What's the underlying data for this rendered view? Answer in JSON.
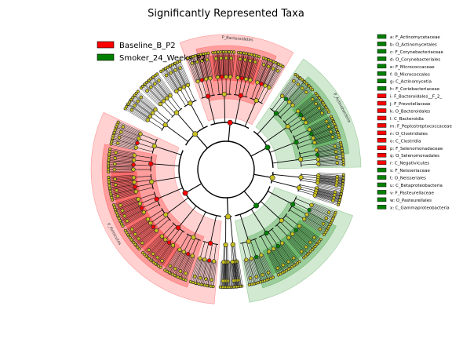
{
  "chart_data": {
    "type": "cladogram",
    "title": "Significantly Represented Taxa",
    "groups": [
      {
        "name": "Baseline_B_P2",
        "color": "#ff0000"
      },
      {
        "name": "Smoker_24_Weeks_P2",
        "color": "#008000"
      }
    ],
    "taxa": [
      {
        "key": "a",
        "label": "a: F_Actinomycetaceae",
        "group": "Smoker_24_Weeks_P2"
      },
      {
        "key": "b",
        "label": "b: O_Actinomycetales",
        "group": "Smoker_24_Weeks_P2"
      },
      {
        "key": "c",
        "label": "c: F_Corynebacteriaceae",
        "group": "Smoker_24_Weeks_P2"
      },
      {
        "key": "d",
        "label": "d: O_Corynebacteriales",
        "group": "Smoker_24_Weeks_P2"
      },
      {
        "key": "e",
        "label": "e: F_Micrococcaceae",
        "group": "Smoker_24_Weeks_P2"
      },
      {
        "key": "f",
        "label": "f: O_Micrococcales",
        "group": "Smoker_24_Weeks_P2"
      },
      {
        "key": "g",
        "label": "g: C_Actinomycetia",
        "group": "Smoker_24_Weeks_P2"
      },
      {
        "key": "h",
        "label": "h: F_Coriobacteriaceae",
        "group": "Smoker_24_Weeks_P2"
      },
      {
        "key": "i",
        "label": "i: F_Bacteroidales__F_2_",
        "group": "Baseline_B_P2"
      },
      {
        "key": "j",
        "label": "j: F_Prevotellaceae",
        "group": "Baseline_B_P2"
      },
      {
        "key": "k",
        "label": "k: O_Bacteroidales",
        "group": "Baseline_B_P2"
      },
      {
        "key": "l",
        "label": "l: C_Bacteroidia",
        "group": "Baseline_B_P2"
      },
      {
        "key": "m",
        "label": "m: F_Peptostreptococcaceae",
        "group": "Baseline_B_P2"
      },
      {
        "key": "n",
        "label": "n: O_Clostridiales",
        "group": "Baseline_B_P2"
      },
      {
        "key": "o",
        "label": "o: C_Clostridia",
        "group": "Baseline_B_P2"
      },
      {
        "key": "p",
        "label": "p: F_Selenomonadaceae",
        "group": "Baseline_B_P2"
      },
      {
        "key": "q",
        "label": "q: O_Selenomonadales",
        "group": "Baseline_B_P2"
      },
      {
        "key": "r",
        "label": "r: C_Negativicutes",
        "group": "Baseline_B_P2"
      },
      {
        "key": "s",
        "label": "s: F_Neisseriaceae",
        "group": "Smoker_24_Weeks_P2"
      },
      {
        "key": "t",
        "label": "t: O_Neisseriales",
        "group": "Smoker_24_Weeks_P2"
      },
      {
        "key": "u",
        "label": "u: C_Betaproteobacteria",
        "group": "Smoker_24_Weeks_P2"
      },
      {
        "key": "v",
        "label": "v: F_Pasteurellaceae",
        "group": "Smoker_24_Weeks_P2"
      },
      {
        "key": "w",
        "label": "w: O_Pasteurellales",
        "group": "Smoker_24_Weeks_P2"
      },
      {
        "key": "x",
        "label": "x: C_Gammaproteobacteria",
        "group": "Smoker_24_Weeks_P2"
      }
    ],
    "phylum_labels": [
      "P_Bacteroidetes",
      "P_Actinobacteria",
      "P_Firmicutes"
    ],
    "sectors": [
      {
        "label": "P_Bacteroidetes",
        "group": "Baseline_B_P2",
        "deg_from": 250,
        "deg_to": 300
      },
      {
        "label": "P_Actinobacteria",
        "group": "Smoker_24_Weeks_P2",
        "deg_from": 305,
        "deg_to": 359
      },
      {
        "label": "P_Firmicutes",
        "group": "Baseline_B_P2",
        "deg_from": 95,
        "deg_to": 205
      },
      {
        "label": "",
        "group": "Smoker_24_Weeks_P2",
        "deg_from": 20,
        "deg_to": 80
      }
    ]
  }
}
